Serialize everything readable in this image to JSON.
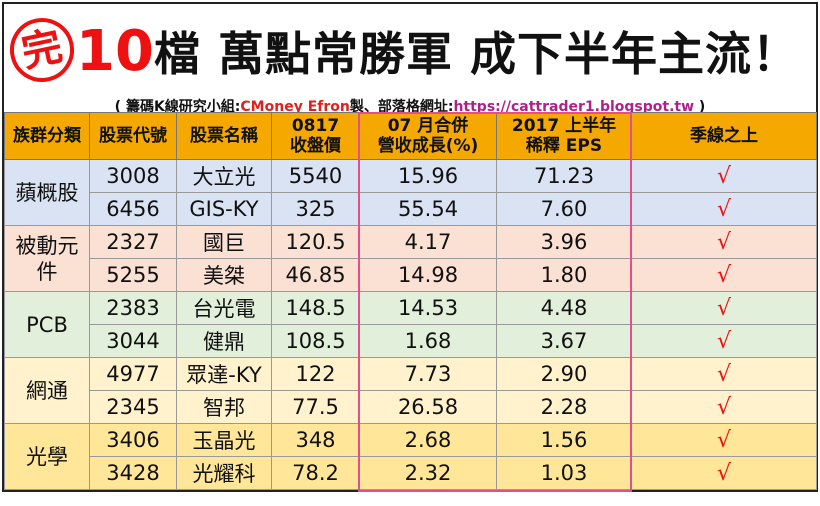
{
  "title": {
    "stamp": "完",
    "number": "10",
    "text": "檔 萬點常勝軍 成下半年主流！"
  },
  "subtitle": [
    {
      "text": "( 籌碼K線研究小組:",
      "color": "#111111"
    },
    {
      "text": "CMoney Efron",
      "color": "#e0201e"
    },
    {
      "text": "製、部落格網址:",
      "color": "#111111"
    },
    {
      "text": "https://cattrader1.blogspot.tw",
      "color": "#b0208a"
    },
    {
      "text": " )",
      "color": "#111111"
    }
  ],
  "table": {
    "headers": [
      [
        "族群分類"
      ],
      [
        "股票代號"
      ],
      [
        "股票名稱"
      ],
      [
        "0817",
        "收盤價"
      ],
      [
        "07 月合併",
        "營收成長(%)"
      ],
      [
        "2017 上半年",
        "稀釋 EPS"
      ],
      [
        "季線之上"
      ]
    ],
    "groups": [
      {
        "name": "蘋概股",
        "color": "#dae3f3",
        "rows": [
          [
            "3008",
            "大立光",
            "5540",
            "15.96",
            "71.23",
            "√"
          ],
          [
            "6456",
            "GIS-KY",
            "325",
            "55.54",
            "7.60",
            "√"
          ]
        ]
      },
      {
        "name": "被動元件",
        "color": "#fbe0d4",
        "rows": [
          [
            "2327",
            "國巨",
            "120.5",
            "4.17",
            "3.96",
            "√"
          ],
          [
            "5255",
            "美桀",
            "46.85",
            "14.98",
            "1.80",
            "√"
          ]
        ]
      },
      {
        "name": "PCB",
        "color": "#e2efda",
        "rows": [
          [
            "2383",
            "台光電",
            "148.5",
            "14.53",
            "4.48",
            "√"
          ],
          [
            "3044",
            "健鼎",
            "108.5",
            "1.68",
            "3.67",
            "√"
          ]
        ]
      },
      {
        "name": "網通",
        "color": "#fff2cc",
        "rows": [
          [
            "4977",
            "眾達-KY",
            "122",
            "7.73",
            "2.90",
            "√"
          ],
          [
            "2345",
            "智邦",
            "77.5",
            "26.58",
            "2.28",
            "√"
          ]
        ]
      },
      {
        "name": "光學",
        "color": "#ffe699",
        "rows": [
          [
            "3406",
            "玉晶光",
            "348",
            "2.68",
            "1.56",
            "√"
          ],
          [
            "3428",
            "光耀科",
            "78.2",
            "2.32",
            "1.03",
            "√"
          ]
        ]
      }
    ]
  }
}
